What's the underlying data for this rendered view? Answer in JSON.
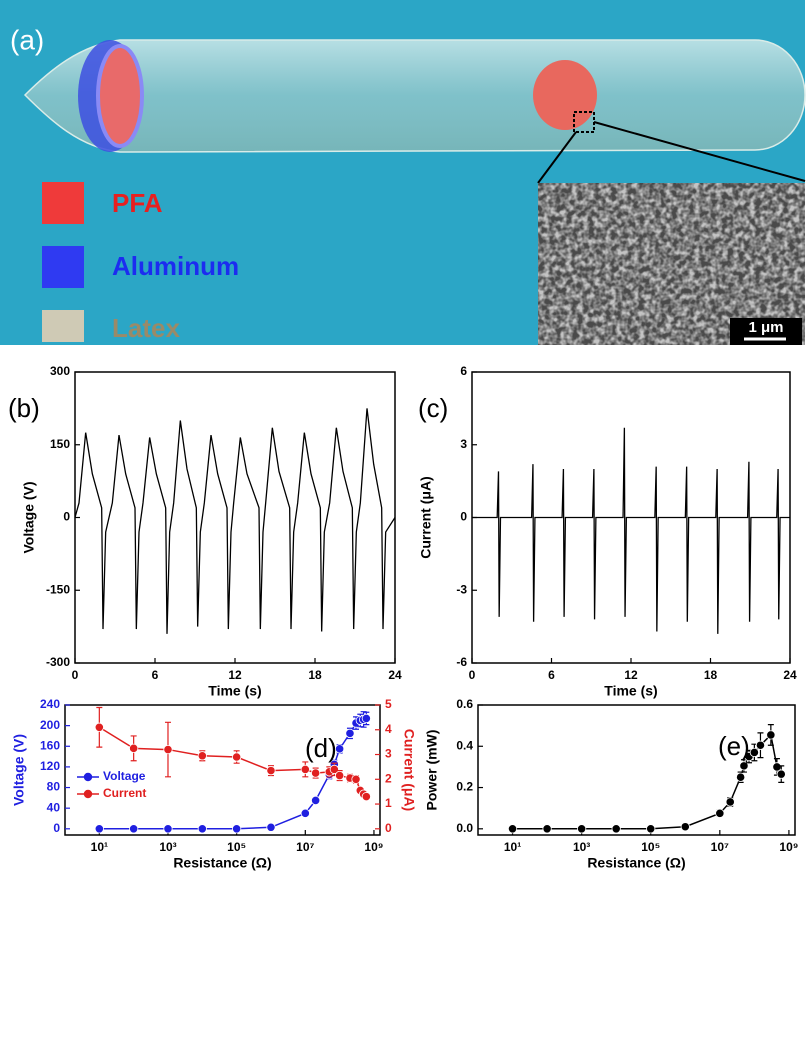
{
  "illustration": {
    "label": "(a)",
    "legend": [
      "PFA",
      "Aluminum",
      "Latex"
    ],
    "scale_bar": "1 μm"
  },
  "chart_data": [
    {
      "type": "line",
      "annotation": "(b)",
      "xlabel": "Time (s)",
      "ylabel": "Voltage (V)",
      "color": "#000000",
      "x": [
        0,
        0.3,
        0.8,
        1.3,
        2.0,
        2.1,
        2.3,
        2.8,
        3.3,
        3.8,
        4.5,
        4.6,
        4.8,
        5.1,
        5.6,
        6.1,
        6.8,
        6.9,
        7.1,
        7.4,
        7.9,
        8.4,
        9.1,
        9.2,
        9.4,
        9.7,
        10.2,
        10.7,
        11.4,
        11.5,
        11.7,
        11.9,
        12.4,
        12.9,
        13.8,
        13.9,
        14.1,
        14.3,
        14.8,
        15.3,
        16.1,
        16.2,
        16.4,
        16.7,
        17.2,
        17.7,
        18.4,
        18.5,
        18.7,
        19.1,
        19.6,
        20.1,
        20.8,
        20.9,
        21.1,
        21.4,
        21.9,
        22.4,
        23.0,
        23.1,
        23.3,
        24
      ],
      "values": [
        0,
        30,
        175,
        90,
        20,
        -230,
        -30,
        30,
        170,
        90,
        20,
        -230,
        -30,
        30,
        165,
        90,
        20,
        -240,
        -30,
        30,
        200,
        100,
        20,
        -225,
        -30,
        30,
        170,
        90,
        20,
        -230,
        -30,
        30,
        165,
        90,
        20,
        -230,
        -30,
        30,
        185,
        95,
        20,
        -230,
        -30,
        30,
        175,
        90,
        20,
        -235,
        -30,
        30,
        185,
        95,
        20,
        -230,
        -30,
        30,
        225,
        110,
        20,
        -230,
        -30,
        0
      ],
      "xlim": [
        0,
        24
      ],
      "xticks": [
        0,
        6,
        12,
        18,
        24
      ],
      "ylim": [
        -300,
        300
      ],
      "yticks": [
        -300,
        -150,
        0,
        150,
        300
      ]
    },
    {
      "type": "line",
      "annotation": "(c)",
      "xlabel": "Time (s)",
      "ylabel": "Current (μA)",
      "color": "#000000",
      "x": [
        0,
        1.9,
        2.0,
        2.05,
        2.15,
        4.5,
        4.6,
        4.65,
        4.75,
        6.8,
        6.9,
        6.95,
        7.05,
        9.1,
        9.2,
        9.25,
        9.35,
        11.4,
        11.5,
        11.55,
        11.65,
        13.8,
        13.9,
        13.95,
        14.05,
        16.1,
        16.2,
        16.25,
        16.35,
        18.4,
        18.5,
        18.55,
        18.65,
        20.8,
        20.9,
        20.95,
        21.05,
        23.0,
        23.1,
        23.15,
        23.25,
        24
      ],
      "values": [
        0,
        0,
        1.9,
        -4.1,
        0,
        0,
        2.2,
        -4.3,
        0,
        0,
        2.0,
        -4.1,
        0,
        0,
        2.0,
        -4.2,
        0,
        0,
        3.7,
        -4.1,
        0,
        0,
        2.1,
        -4.7,
        0,
        0,
        2.1,
        -4.3,
        0,
        0,
        2.0,
        -4.8,
        0,
        0,
        2.3,
        -4.3,
        0,
        0,
        2.0,
        -4.2,
        0,
        0
      ],
      "xlim": [
        0,
        24
      ],
      "xticks": [
        0,
        6,
        12,
        18,
        24
      ],
      "ylim": [
        -6,
        6
      ],
      "yticks": [
        -6,
        -3,
        0,
        3,
        6
      ]
    },
    {
      "type": "line",
      "markers": true,
      "annotation": "(d)",
      "xlabel": "Resistance (Ω)",
      "ylabel": "Voltage (V)",
      "y2label": "Current (μA)",
      "legend": "lower left",
      "xscale": "log",
      "x": [
        10,
        100,
        1000,
        10000,
        100000,
        1000000,
        10000000,
        20000000,
        50000000,
        70000000,
        100000000,
        200000000,
        300000000,
        400000000,
        500000000,
        600000000
      ],
      "series": [
        {
          "name": "Voltage",
          "color": "#1f1fe0",
          "values": [
            0,
            0,
            0,
            0,
            0,
            3,
            30,
            55,
            105,
            125,
            155,
            185,
            205,
            210,
            212,
            214
          ],
          "errors": [
            2,
            2,
            2,
            2,
            2,
            2,
            3,
            5,
            8,
            8,
            8,
            10,
            12,
            12,
            15,
            12
          ]
        },
        {
          "name": "Current",
          "color": "#e02020",
          "axis": "y2",
          "values": [
            4.1,
            3.25,
            3.2,
            2.95,
            2.9,
            2.35,
            2.4,
            2.25,
            2.3,
            2.4,
            2.15,
            2.05,
            2.0,
            1.55,
            1.4,
            1.3
          ],
          "errors": [
            0.8,
            0.5,
            1.1,
            0.2,
            0.25,
            0.2,
            0.3,
            0.2,
            0.2,
            0.25,
            0.2,
            0.15,
            0.15,
            0.1,
            0.1,
            0.1
          ]
        }
      ],
      "xlim": [
        1,
        1500000000
      ],
      "xticks": [
        {
          "value": 10,
          "label": "10¹"
        },
        {
          "value": 1000,
          "label": "10³"
        },
        {
          "value": 100000,
          "label": "10⁵"
        },
        {
          "value": 10000000,
          "label": "10⁷"
        },
        {
          "value": 1000000000,
          "label": "10⁹"
        }
      ],
      "ylim": [
        -12,
        240
      ],
      "yticks": [
        0,
        40,
        80,
        120,
        160,
        200,
        240
      ],
      "y2lim": [
        -0.25,
        5
      ],
      "y2ticks": [
        0,
        1,
        2,
        3,
        4,
        5
      ]
    },
    {
      "type": "line",
      "markers": true,
      "annotation": "(e)",
      "xlabel": "Resistance (Ω)",
      "ylabel": "Power (mW)",
      "xscale": "log",
      "color": "#000000",
      "x": [
        10,
        100,
        1000,
        10000,
        100000,
        1000000,
        10000000,
        20000000,
        40000000,
        50000000,
        70000000,
        100000000,
        150000000,
        300000000,
        450000000,
        600000000
      ],
      "values": [
        0,
        0,
        0,
        0,
        0,
        0.01,
        0.075,
        0.13,
        0.25,
        0.305,
        0.35,
        0.37,
        0.405,
        0.455,
        0.3,
        0.265
      ],
      "errors": [
        0.005,
        0.005,
        0.005,
        0.005,
        0.005,
        0.005,
        0.015,
        0.02,
        0.025,
        0.03,
        0.03,
        0.04,
        0.06,
        0.05,
        0.04,
        0.04
      ],
      "xlim": [
        1,
        1500000000
      ],
      "xticks": [
        {
          "value": 10,
          "label": "10¹"
        },
        {
          "value": 1000,
          "label": "10³"
        },
        {
          "value": 100000,
          "label": "10⁵"
        },
        {
          "value": 10000000,
          "label": "10⁷"
        },
        {
          "value": 1000000000,
          "label": "10⁹"
        }
      ],
      "ylim": [
        -0.03,
        0.6
      ],
      "yticks": [
        {
          "value": 0,
          "label": "0.0"
        },
        0.2,
        0.4,
        0.6
      ]
    }
  ]
}
